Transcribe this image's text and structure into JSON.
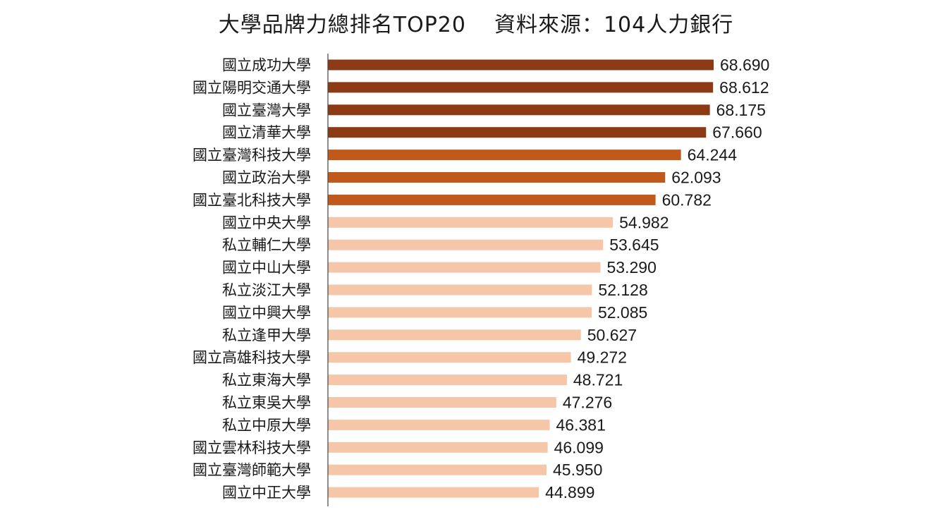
{
  "title_left": "大學品牌力總排名TOP20",
  "title_right": "資料來源：104人力銀行",
  "colors": {
    "dark": "#8B3A14",
    "medium": "#C05A1C",
    "light": "#F5C7A8",
    "axis": "#444444"
  },
  "chart_data": {
    "type": "bar",
    "orientation": "horizontal",
    "title": "大學品牌力總排名TOP20　資料來源：104人力銀行",
    "categories": [
      "國立成功大學",
      "國立陽明交通大學",
      "國立臺灣大學",
      "國立清華大學",
      "國立臺灣科技大學",
      "國立政治大學",
      "國立臺北科技大學",
      "國立中央大學",
      "私立輔仁大學",
      "國立中山大學",
      "私立淡江大學",
      "國立中興大學",
      "私立逢甲大學",
      "國立高雄科技大學",
      "私立東海大學",
      "私立東吳大學",
      "私立中原大學",
      "國立雲林科技大學",
      "國立臺灣師範大學",
      "國立中正大學"
    ],
    "values": [
      68.69,
      68.612,
      68.175,
      67.66,
      64.244,
      62.093,
      60.782,
      54.982,
      53.645,
      53.29,
      52.128,
      52.085,
      50.627,
      49.272,
      48.721,
      47.276,
      46.381,
      46.099,
      45.95,
      44.899
    ],
    "value_labels": [
      "68.690",
      "68.612",
      "68.175",
      "67.660",
      "64.244",
      "62.093",
      "60.782",
      "54.982",
      "53.645",
      "53.290",
      "52.128",
      "52.085",
      "50.627",
      "49.272",
      "48.721",
      "47.276",
      "46.381",
      "46.099",
      "45.950",
      "44.899"
    ],
    "color_groups": [
      "dark",
      "dark",
      "dark",
      "dark",
      "medium",
      "medium",
      "medium",
      "light",
      "light",
      "light",
      "light",
      "light",
      "light",
      "light",
      "light",
      "light",
      "light",
      "light",
      "light",
      "light"
    ],
    "xlim": [
      16.2,
      68.69
    ],
    "grid": false,
    "xlabel": "",
    "ylabel": ""
  }
}
